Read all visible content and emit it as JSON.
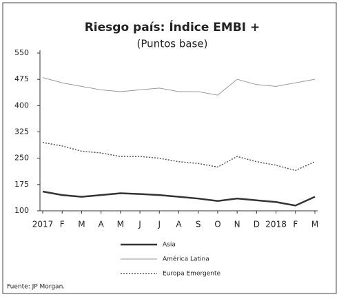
{
  "chart_data": {
    "type": "line",
    "title": "Riesgo país: Índice EMBI +",
    "subtitle": "(Puntos base)",
    "source": "Fuente: JP Morgan.",
    "categories": [
      "2017",
      "F",
      "M",
      "A",
      "M",
      "J",
      "J",
      "A",
      "S",
      "O",
      "N",
      "D",
      "2018",
      "F",
      "M"
    ],
    "series": [
      {
        "name": "Asia",
        "color": "#333333",
        "width": 2.5,
        "style": "solid",
        "values": [
          155,
          145,
          140,
          145,
          150,
          148,
          145,
          140,
          135,
          128,
          135,
          130,
          125,
          115,
          140
        ]
      },
      {
        "name": "América Latina",
        "color": "#999999",
        "width": 1,
        "style": "solid",
        "values": [
          480,
          465,
          455,
          445,
          440,
          445,
          450,
          440,
          440,
          430,
          475,
          460,
          455,
          465,
          475
        ]
      },
      {
        "name": "Europa Emergente",
        "color": "#555555",
        "width": 1.5,
        "style": "dotted",
        "values": [
          295,
          285,
          270,
          265,
          255,
          255,
          250,
          240,
          235,
          225,
          255,
          240,
          230,
          215,
          240
        ]
      }
    ],
    "ylim": [
      100,
      550
    ],
    "yticks": [
      100,
      175,
      250,
      325,
      400,
      475,
      550
    ],
    "grid": false
  }
}
